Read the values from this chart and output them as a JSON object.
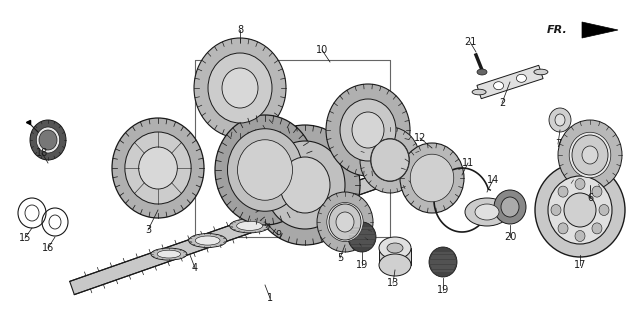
{
  "bg_color": "#ffffff",
  "line_color": "#1a1a1a",
  "fig_width": 6.4,
  "fig_height": 3.17,
  "dpi": 100,
  "components": {
    "shaft_color": "#888888",
    "gear_fill": "#c8c8c8",
    "dark_fill": "#555555",
    "ring_fill": "#aaaaaa"
  }
}
